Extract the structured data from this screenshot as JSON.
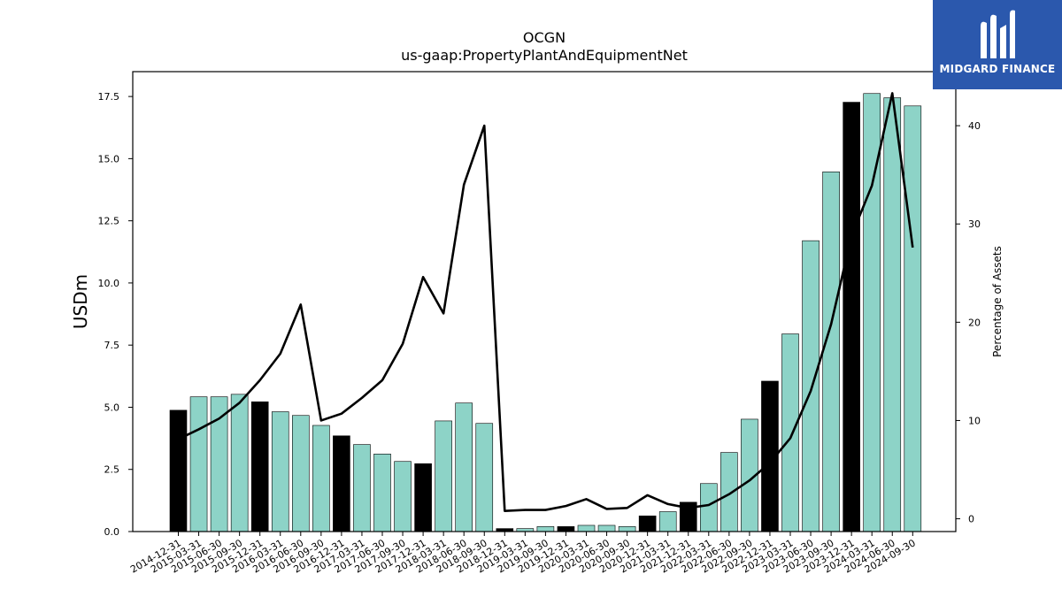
{
  "logo": {
    "text": "MIDGARD FINANCE",
    "background": "#2b58ad",
    "mark": "mh-logo-icon"
  },
  "chart_data": {
    "type": "bar",
    "title": "OCGN",
    "subtitle": "us-gaap:PropertyPlantAndEquipmentNet",
    "ylabel": "USDm",
    "y2label": "Percentage of Assets",
    "ylim": [
      0,
      18.5
    ],
    "y2lim": [
      -1.3,
      45.5
    ],
    "yticks": [
      "0.0",
      "2.5",
      "5.0",
      "7.5",
      "10.0",
      "12.5",
      "15.0",
      "17.5"
    ],
    "y2ticks": [
      "0",
      "10",
      "20",
      "30",
      "40"
    ],
    "grid": false,
    "bar_color": "#8dd3c7",
    "highlight_color": "#000000",
    "line_color": "#000000",
    "categories": [
      "2014-12-31",
      "2015-03-31",
      "2015-06-30",
      "2015-09-30",
      "2015-12-31",
      "2016-03-31",
      "2016-06-30",
      "2016-09-30",
      "2016-12-31",
      "2017-03-31",
      "2017-06-30",
      "2017-09-30",
      "2017-12-31",
      "2018-03-31",
      "2018-06-30",
      "2018-09-30",
      "2018-12-31",
      "2019-03-31",
      "2019-09-30",
      "2019-12-31",
      "2020-03-31",
      "2020-06-30",
      "2020-09-30",
      "2020-12-31",
      "2021-03-31",
      "2021-12-31",
      "2022-03-31",
      "2022-06-30",
      "2022-09-30",
      "2022-12-31",
      "2023-03-31",
      "2023-06-30",
      "2023-09-30",
      "2023-12-31",
      "2024-03-31",
      "2024-06-30",
      "2024-09-30"
    ],
    "series": [
      {
        "type": "bar",
        "values": [
          4.88,
          5.42,
          5.42,
          5.52,
          5.22,
          4.82,
          4.67,
          4.27,
          3.85,
          3.5,
          3.12,
          2.82,
          2.73,
          4.45,
          5.17,
          4.35,
          0.12,
          0.12,
          0.2,
          0.2,
          0.25,
          0.25,
          0.2,
          0.63,
          0.8,
          1.18,
          1.93,
          3.18,
          4.52,
          6.05,
          7.95,
          11.7,
          14.47,
          17.27,
          17.62,
          17.45,
          17.12
        ],
        "highlight": [
          true,
          false,
          false,
          false,
          true,
          false,
          false,
          false,
          true,
          false,
          false,
          false,
          true,
          false,
          false,
          false,
          true,
          false,
          false,
          true,
          false,
          false,
          false,
          true,
          false,
          true,
          false,
          false,
          false,
          true,
          false,
          false,
          false,
          true,
          false,
          false,
          false
        ]
      },
      {
        "type": "line",
        "axis": "right",
        "values": [
          8.1,
          9.1,
          10.2,
          11.8,
          14.1,
          16.8,
          21.8,
          10.0,
          10.7,
          12.3,
          14.1,
          17.8,
          24.6,
          20.9,
          34.0,
          40.0,
          0.8,
          0.9,
          0.9,
          1.3,
          2.0,
          1.0,
          1.1,
          2.4,
          1.5,
          1.1,
          1.4,
          2.5,
          3.9,
          5.7,
          8.2,
          13.0,
          19.8,
          28.8,
          33.9,
          43.3,
          27.6
        ]
      }
    ]
  }
}
